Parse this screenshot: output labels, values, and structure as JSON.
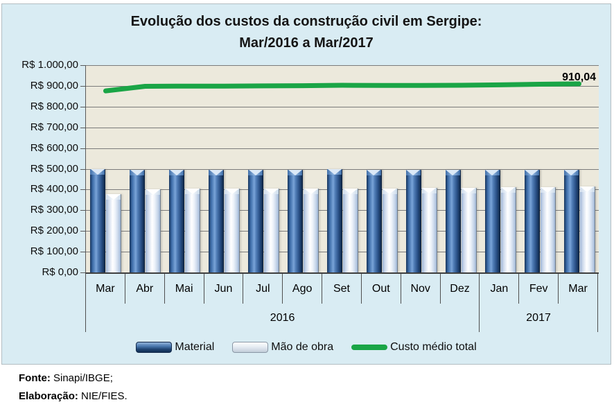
{
  "chart": {
    "title_line1": "Evolução dos custos da construção civil em Sergipe:",
    "title_line2": "Mar/2016 a Mar/2017"
  },
  "chart_data": {
    "type": "bar",
    "subtype": "grouped bars with overlay line",
    "title": "Evolução dos custos da construção civil em Sergipe: Mar/2016 a Mar/2017",
    "categories": [
      "Mar",
      "Abr",
      "Mai",
      "Jun",
      "Jul",
      "Ago",
      "Set",
      "Out",
      "Nov",
      "Dez",
      "Jan",
      "Fev",
      "Mar"
    ],
    "year_groups": [
      {
        "label": "2016",
        "span": 10
      },
      {
        "label": "2017",
        "span": 3
      }
    ],
    "series": [
      {
        "name": "Material",
        "type": "bar",
        "color": "#2e5causal-removed",
        "values": [
          497,
          494,
          494,
          495,
          496,
          496,
          497,
          496,
          495,
          495,
          494,
          495,
          495
        ]
      },
      {
        "name": "Mão de obra",
        "type": "bar",
        "color": "#dce6f2",
        "values": [
          379,
          403,
          404,
          404,
          404,
          405,
          406,
          406,
          407,
          408,
          411,
          413,
          415
        ]
      },
      {
        "name": "Custo médio total",
        "type": "line",
        "color": "#1aa546",
        "values": [
          876,
          898,
          899,
          899,
          900,
          901,
          903,
          902,
          902,
          903,
          905,
          908,
          910.04
        ]
      }
    ],
    "y_ticks": [
      "R$ 1.000,00",
      "R$ 900,00",
      "R$ 800,00",
      "R$ 700,00",
      "R$ 600,00",
      "R$ 500,00",
      "R$ 400,00",
      "R$ 300,00",
      "R$ 200,00",
      "R$ 100,00",
      "R$ 0,00"
    ],
    "ylim": [
      0,
      1000
    ],
    "grid": "horizontal",
    "legend_position": "bottom",
    "annotation": {
      "text": "910,04",
      "series": "Custo médio total",
      "category": "Mar/2017"
    }
  },
  "legend": {
    "items": [
      {
        "label": "Material"
      },
      {
        "label": "Mão de obra"
      },
      {
        "label": "Custo médio total"
      }
    ]
  },
  "footer": {
    "fonte_label": "Fonte:",
    "fonte_value": "Sinapi/IBGE;",
    "elaboracao_label": "Elaboração:",
    "elaboracao_value": "NIE/FIES."
  },
  "colors": {
    "chart_bg": "#d9ecf3",
    "plot_bg": "#ece9dc",
    "material_bar": "#3a6ca8",
    "mao_de_obra_bar": "#e6eef8",
    "line_green": "#1aa546"
  }
}
